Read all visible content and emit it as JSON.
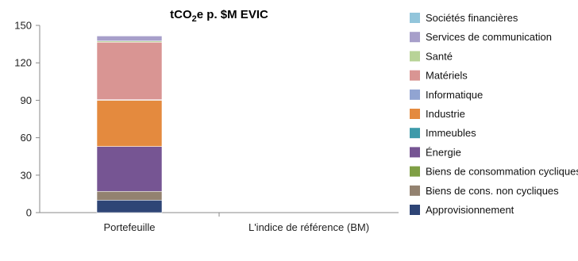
{
  "chart_data": {
    "type": "bar",
    "stacked": true,
    "title": {
      "main": "tCO",
      "sub": "2",
      "rest": "e p. $M EVIC"
    },
    "categories": [
      "Portefeuille",
      "L'indice de référence (BM)"
    ],
    "ylim": [
      0,
      150
    ],
    "yticks": [
      "0",
      "30",
      "60",
      "90",
      "120",
      "150"
    ],
    "grid": false,
    "legend_position": "right",
    "series": [
      {
        "name": "Approvisionnement",
        "color": "#2e4576",
        "values": [
          10,
          0
        ]
      },
      {
        "name": "Biens de cons. non cycliques",
        "color": "#938270",
        "values": [
          7,
          0
        ]
      },
      {
        "name": "Biens de consommation cycliques",
        "color": "#7f9f45",
        "values": [
          0,
          0
        ]
      },
      {
        "name": "Énergie",
        "color": "#765593",
        "values": [
          36,
          0
        ]
      },
      {
        "name": "Immeubles",
        "color": "#3d9aaa",
        "values": [
          0,
          0
        ]
      },
      {
        "name": "Industrie",
        "color": "#e48a3e",
        "values": [
          37,
          0
        ]
      },
      {
        "name": "Informatique",
        "color": "#91a4d2",
        "values": [
          0.5,
          0
        ]
      },
      {
        "name": "Matériels",
        "color": "#d99593",
        "values": [
          46,
          0
        ]
      },
      {
        "name": "Santé",
        "color": "#b8d397",
        "values": [
          1,
          0
        ]
      },
      {
        "name": "Services de communication",
        "color": "#a79fca",
        "values": [
          4,
          0
        ]
      },
      {
        "name": "Sociétés financières",
        "color": "#92c5db",
        "values": [
          0,
          0
        ]
      }
    ]
  }
}
